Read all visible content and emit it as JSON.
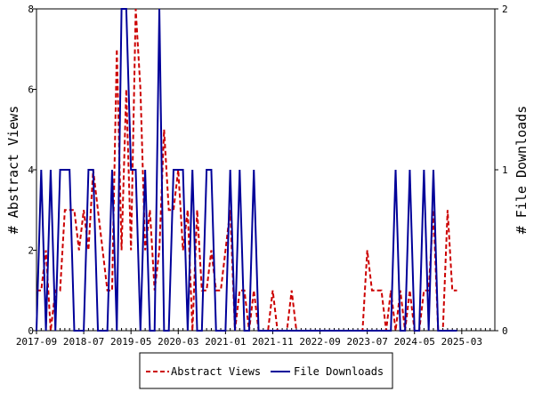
{
  "chart_data": {
    "type": "line",
    "title": "",
    "xlabel": "",
    "ylabel_left": "# Abstract Views",
    "ylabel_right": "# File Downloads",
    "ylim_left": [
      0,
      8
    ],
    "ylim_right": [
      0,
      2
    ],
    "yticks_left": [
      "0",
      "2",
      "4",
      "6",
      "8"
    ],
    "yticks_right": [
      "0",
      "1",
      "2"
    ],
    "grid": false,
    "legend_placement": "bottom-center",
    "x_start": "2017-09",
    "x_end": "2025-10",
    "x_tick_labels": [
      "2017-09",
      "2018-07",
      "2019-05",
      "2020-03",
      "2021-01",
      "2021-11",
      "2022-09",
      "2023-07",
      "2024-05",
      "2025-03"
    ],
    "series": [
      {
        "name": "Abstract Views",
        "axis": "left",
        "color": "#cc0000",
        "dash": "dashed",
        "values": [
          1,
          1,
          2,
          0,
          1,
          1,
          3,
          3,
          3,
          2,
          3,
          2,
          4,
          3,
          2,
          1,
          1,
          7,
          2,
          6,
          2,
          8,
          6,
          2,
          3,
          1,
          2,
          5,
          3,
          3,
          4,
          2,
          3,
          0,
          3,
          1,
          1,
          2,
          1,
          1,
          2,
          3,
          0,
          1,
          1,
          0,
          1,
          0,
          0,
          0,
          1,
          0,
          0,
          0,
          1,
          0,
          0,
          0,
          0,
          0,
          0,
          0,
          0,
          0,
          0,
          0,
          0,
          0,
          0,
          0,
          2,
          1,
          1,
          1,
          0,
          1,
          0,
          1,
          0,
          1,
          0,
          0,
          1,
          1,
          3,
          0,
          0,
          3,
          1,
          1
        ]
      },
      {
        "name": "File Downloads",
        "axis": "right",
        "color": "#000099",
        "dash": "solid",
        "values": [
          0,
          1,
          0,
          1,
          0,
          1,
          1,
          1,
          0,
          0,
          0,
          1,
          1,
          0,
          0,
          0,
          1,
          0,
          2,
          2,
          1,
          1,
          0,
          1,
          0,
          0,
          2,
          0,
          0,
          1,
          1,
          1,
          0,
          1,
          0,
          0,
          1,
          1,
          0,
          0,
          0,
          1,
          0,
          1,
          0,
          0,
          1,
          0,
          0,
          0,
          0,
          0,
          0,
          0,
          0,
          0,
          0,
          0,
          0,
          0,
          0,
          0,
          0,
          0,
          0,
          0,
          0,
          0,
          0,
          0,
          0,
          0,
          0,
          0,
          0,
          0,
          1,
          0,
          0,
          1,
          0,
          0,
          1,
          0,
          1,
          0,
          0,
          0,
          0,
          0
        ]
      }
    ]
  },
  "legend": {
    "items": [
      {
        "label": "Abstract Views",
        "color": "#cc0000",
        "dash": "dashed"
      },
      {
        "label": "File Downloads",
        "color": "#000099",
        "dash": "solid"
      }
    ]
  }
}
